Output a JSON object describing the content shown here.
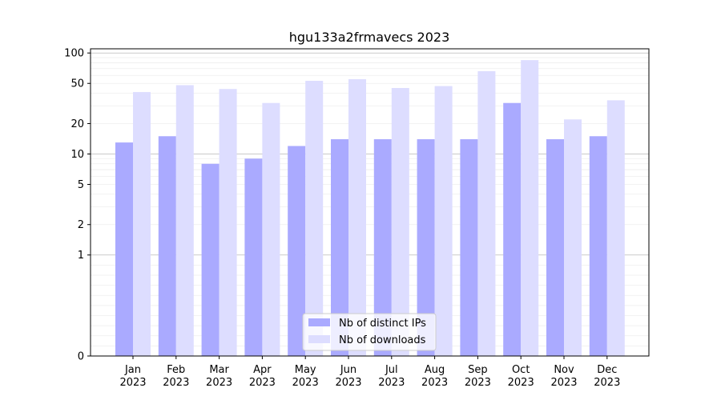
{
  "chart_data": {
    "type": "bar",
    "title": "hgu133a2frmavecs 2023",
    "xlabel": "",
    "ylabel": "",
    "categories": [
      "Jan\n2023",
      "Feb\n2023",
      "Mar\n2023",
      "Apr\n2023",
      "May\n2023",
      "Jun\n2023",
      "Jul\n2023",
      "Aug\n2023",
      "Sep\n2023",
      "Oct\n2023",
      "Nov\n2023",
      "Dec\n2023"
    ],
    "series": [
      {
        "name": "Nb of distinct IPs",
        "color": "#aaaaff",
        "values": [
          13,
          15,
          8,
          9,
          12,
          14,
          14,
          14,
          14,
          32,
          14,
          15
        ]
      },
      {
        "name": "Nb of downloads",
        "color": "#ddddff",
        "values": [
          41,
          48,
          44,
          32,
          53,
          55,
          45,
          47,
          66,
          85,
          22,
          34
        ]
      }
    ],
    "y_scale": "symlog",
    "ylim": [
      0,
      110
    ],
    "yticks": [
      0,
      1,
      2,
      5,
      10,
      20,
      50,
      100
    ],
    "grid": true,
    "legend_position": "bottom-center"
  }
}
